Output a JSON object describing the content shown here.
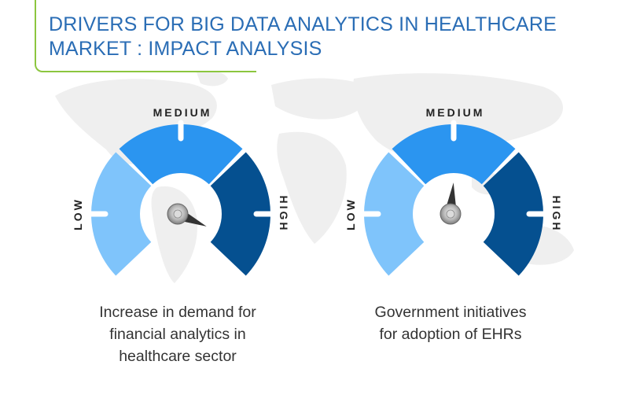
{
  "title": {
    "line1": "DRIVERS FOR BIG DATA ANALYTICS IN HEALTHCARE",
    "line2": "MARKET : IMPACT ANALYSIS"
  },
  "colors": {
    "accent_line": "#8cc63f",
    "title": "#2a6db5",
    "low": "#7fc4fb",
    "medium": "#2b95f0",
    "high": "#055090"
  },
  "chart_data": [
    {
      "type": "gauge",
      "labels": {
        "low": "LOW",
        "medium": "MEDIUM",
        "high": "HIGH"
      },
      "needle_level": "HIGH",
      "needle_value": 0.92,
      "caption": [
        "Increase in demand for",
        "financial analytics in",
        "healthcare sector"
      ]
    },
    {
      "type": "gauge",
      "labels": {
        "low": "LOW",
        "medium": "MEDIUM",
        "high": "HIGH"
      },
      "needle_level": "MEDIUM",
      "needle_value": 0.52,
      "caption": [
        "Government initiatives",
        "for adoption of EHRs"
      ]
    }
  ]
}
